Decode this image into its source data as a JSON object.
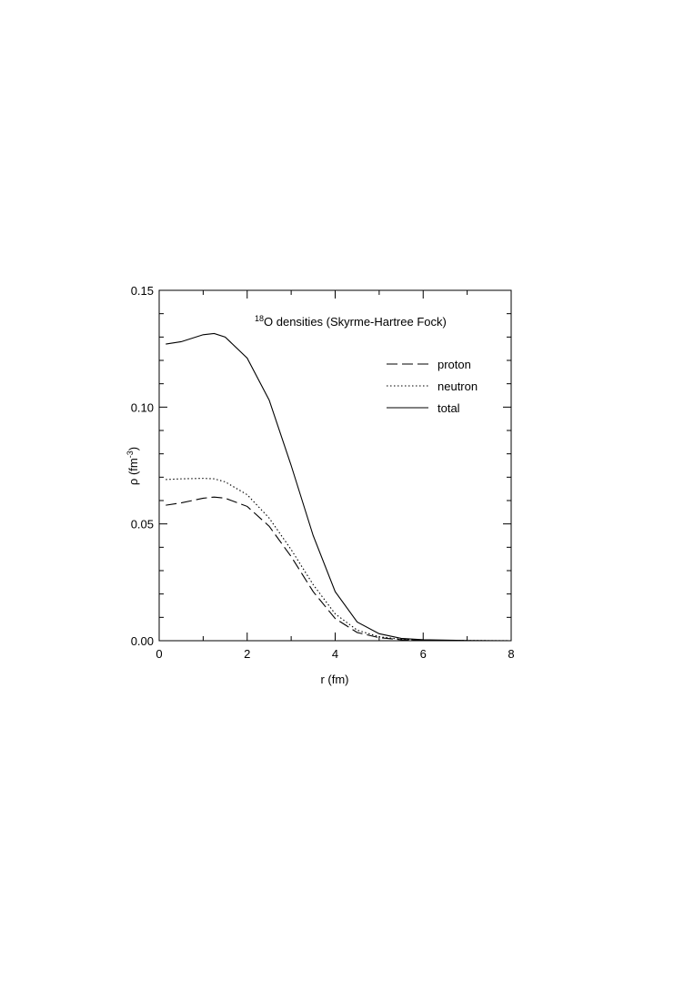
{
  "chart_data": {
    "type": "line",
    "title": {
      "sup": "18",
      "text": "O densities (Skyrme-Hartree Fock)"
    },
    "x_label": "r (fm)",
    "y_label": {
      "text": "ρ (fm",
      "sup": "-3",
      "after": ")"
    },
    "x": [
      0.15,
      0.5,
      1.0,
      1.25,
      1.5,
      2.0,
      2.5,
      3.0,
      3.5,
      4.0,
      4.5,
      5.0,
      5.5,
      6.0,
      7.0,
      8.0
    ],
    "series": [
      {
        "name": "proton",
        "color": "#000000",
        "dash": "dashed",
        "values": [
          0.058,
          0.059,
          0.061,
          0.0615,
          0.061,
          0.0575,
          0.049,
          0.036,
          0.021,
          0.0095,
          0.0035,
          0.0013,
          0.0004,
          0.0002,
          0.0,
          0.0
        ]
      },
      {
        "name": "neutron",
        "color": "#000000",
        "dash": "dotted",
        "values": [
          0.069,
          0.0693,
          0.0695,
          0.0693,
          0.068,
          0.0625,
          0.0525,
          0.039,
          0.024,
          0.0115,
          0.0045,
          0.0017,
          0.0006,
          0.0002,
          0.0001,
          0.0
        ]
      },
      {
        "name": "total",
        "color": "#000000",
        "dash": "solid",
        "values": [
          0.127,
          0.128,
          0.131,
          0.1315,
          0.13,
          0.121,
          0.103,
          0.075,
          0.045,
          0.021,
          0.008,
          0.003,
          0.001,
          0.0004,
          0.0001,
          0.0
        ]
      }
    ],
    "xlim": [
      0,
      8
    ],
    "xticks": [
      0,
      2,
      4,
      6,
      8
    ],
    "xminor_ticks": [
      1,
      3,
      5,
      7
    ],
    "ylim": [
      0,
      0.15
    ],
    "yticks": [
      {
        "value": 0,
        "label": "0.00"
      },
      {
        "value": 0.05,
        "label": "0.05"
      },
      {
        "value": 0.1,
        "label": "0.10"
      },
      {
        "value": 0.15,
        "label": "0.15"
      }
    ],
    "yminor_ticks": [
      0.01,
      0.02,
      0.03,
      0.04,
      0.06,
      0.07,
      0.08,
      0.09,
      0.11,
      0.12,
      0.13,
      0.14
    ],
    "legend": "upper right",
    "grid": false
  }
}
